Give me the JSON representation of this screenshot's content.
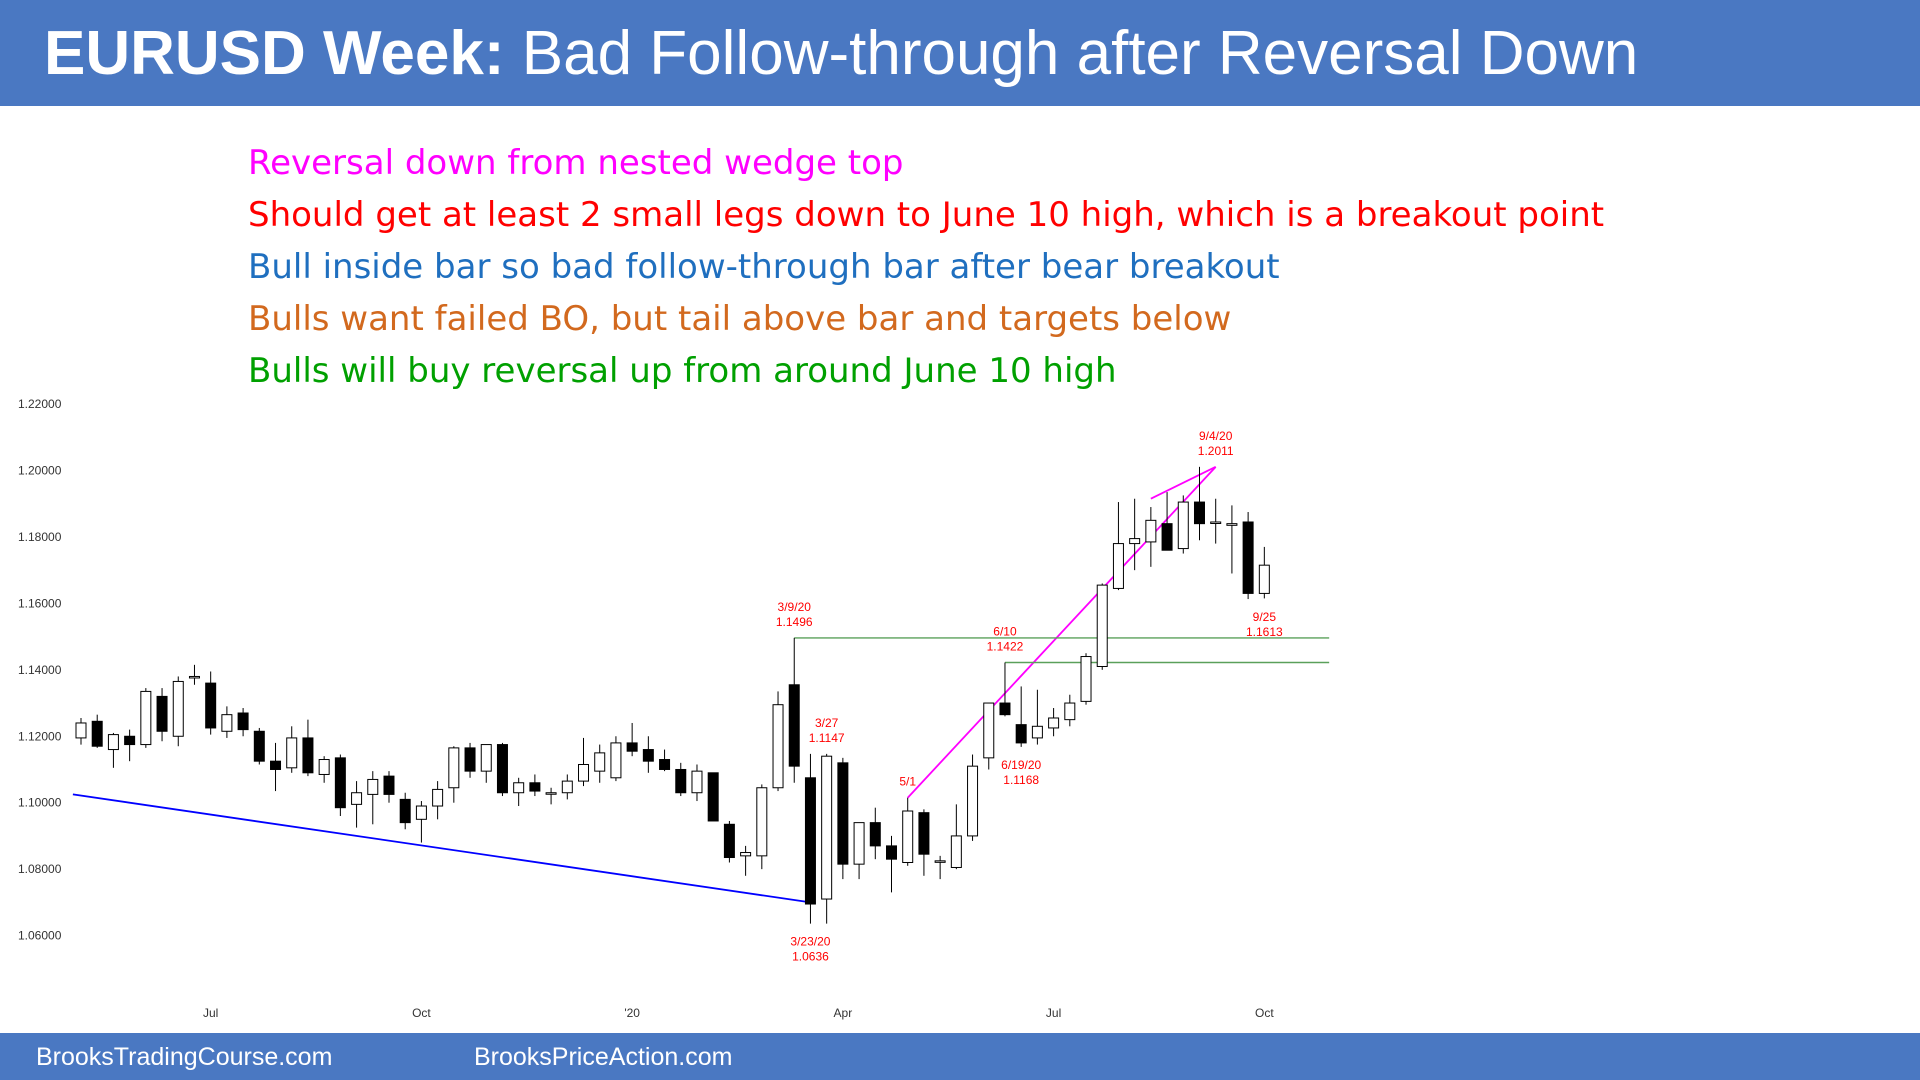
{
  "slide": {
    "title_bold": "EURUSD Week:",
    "title_rest": "Bad Follow-through after Reversal Down"
  },
  "notes": [
    {
      "text": "Reversal down from nested wedge top",
      "color": "#ff00ff"
    },
    {
      "text": "Should get at least 2 small legs down to June 10 high, which is a breakout point",
      "color": "#ff0000"
    },
    {
      "text": "Bull inside bar so bad follow-through bar after bear breakout",
      "color": "#1f6fbf"
    },
    {
      "text": "Bulls want failed BO, but tail above bar and targets below",
      "color": "#d2691e"
    },
    {
      "text": "Bulls will buy reversal up from around June 10 high",
      "color": "#00a000"
    }
  ],
  "footer": {
    "left": "BrooksTradingCourse.com",
    "right": "BrooksPriceAction.com"
  },
  "colors": {
    "banner": "#4a78c2",
    "annotation": "#ff0000",
    "trendline": "#0000ff",
    "wedge": "#ff00ff",
    "support": "#5aa05a"
  },
  "chart_data": {
    "type": "candlestick",
    "title": "",
    "xlabel": "",
    "ylabel": "",
    "ylim": [
      1.05,
      1.225
    ],
    "yticks": [
      "1.22000",
      "1.20000",
      "1.18000",
      "1.16000",
      "1.14000",
      "1.12000",
      "1.10000",
      "1.08000",
      "1.06000"
    ],
    "x_ticks": [
      {
        "label": "Jul",
        "index": 8
      },
      {
        "label": "Oct",
        "index": 21
      },
      {
        "label": "'20",
        "index": 34
      },
      {
        "label": "Apr",
        "index": 47
      },
      {
        "label": "Jul",
        "index": 60
      },
      {
        "label": "Oct",
        "index": 73
      }
    ],
    "candles": [
      {
        "o": 1.1195,
        "h": 1.1255,
        "l": 1.1175,
        "c": 1.124
      },
      {
        "o": 1.1245,
        "h": 1.1265,
        "l": 1.1165,
        "c": 1.117
      },
      {
        "o": 1.116,
        "h": 1.121,
        "l": 1.1105,
        "c": 1.1205
      },
      {
        "o": 1.12,
        "h": 1.122,
        "l": 1.1125,
        "c": 1.1175
      },
      {
        "o": 1.1175,
        "h": 1.1345,
        "l": 1.1165,
        "c": 1.1335
      },
      {
        "o": 1.132,
        "h": 1.1345,
        "l": 1.1185,
        "c": 1.1215
      },
      {
        "o": 1.12,
        "h": 1.138,
        "l": 1.117,
        "c": 1.1365
      },
      {
        "o": 1.138,
        "h": 1.1415,
        "l": 1.1355,
        "c": 1.138
      },
      {
        "o": 1.136,
        "h": 1.1395,
        "l": 1.1205,
        "c": 1.1225
      },
      {
        "o": 1.1215,
        "h": 1.129,
        "l": 1.1195,
        "c": 1.1265
      },
      {
        "o": 1.127,
        "h": 1.1285,
        "l": 1.12,
        "c": 1.122
      },
      {
        "o": 1.1215,
        "h": 1.1225,
        "l": 1.1115,
        "c": 1.1125
      },
      {
        "o": 1.1125,
        "h": 1.118,
        "l": 1.1035,
        "c": 1.11
      },
      {
        "o": 1.1105,
        "h": 1.123,
        "l": 1.109,
        "c": 1.1195
      },
      {
        "o": 1.1195,
        "h": 1.125,
        "l": 1.108,
        "c": 1.109
      },
      {
        "o": 1.1085,
        "h": 1.114,
        "l": 1.106,
        "c": 1.113
      },
      {
        "o": 1.1135,
        "h": 1.1145,
        "l": 1.096,
        "c": 1.0985
      },
      {
        "o": 1.0995,
        "h": 1.1065,
        "l": 1.0925,
        "c": 1.103
      },
      {
        "o": 1.1025,
        "h": 1.1095,
        "l": 1.0935,
        "c": 1.107
      },
      {
        "o": 1.108,
        "h": 1.1095,
        "l": 1.1,
        "c": 1.1025
      },
      {
        "o": 1.101,
        "h": 1.103,
        "l": 1.092,
        "c": 1.094
      },
      {
        "o": 1.095,
        "h": 1.1005,
        "l": 1.088,
        "c": 1.099
      },
      {
        "o": 1.099,
        "h": 1.1065,
        "l": 1.095,
        "c": 1.104
      },
      {
        "o": 1.1045,
        "h": 1.117,
        "l": 1.1,
        "c": 1.1165
      },
      {
        "o": 1.1165,
        "h": 1.118,
        "l": 1.1075,
        "c": 1.1095
      },
      {
        "o": 1.1095,
        "h": 1.1175,
        "l": 1.106,
        "c": 1.1175
      },
      {
        "o": 1.1175,
        "h": 1.118,
        "l": 1.102,
        "c": 1.103
      },
      {
        "o": 1.103,
        "h": 1.1075,
        "l": 1.099,
        "c": 1.106
      },
      {
        "o": 1.106,
        "h": 1.1085,
        "l": 1.102,
        "c": 1.1035
      },
      {
        "o": 1.103,
        "h": 1.1045,
        "l": 1.0995,
        "c": 1.103
      },
      {
        "o": 1.103,
        "h": 1.1085,
        "l": 1.101,
        "c": 1.1065
      },
      {
        "o": 1.1065,
        "h": 1.1195,
        "l": 1.105,
        "c": 1.1115
      },
      {
        "o": 1.1095,
        "h": 1.1175,
        "l": 1.106,
        "c": 1.115
      },
      {
        "o": 1.1075,
        "h": 1.12,
        "l": 1.1065,
        "c": 1.118
      },
      {
        "o": 1.118,
        "h": 1.124,
        "l": 1.114,
        "c": 1.1155
      },
      {
        "o": 1.116,
        "h": 1.12,
        "l": 1.109,
        "c": 1.1125
      },
      {
        "o": 1.113,
        "h": 1.116,
        "l": 1.1095,
        "c": 1.11
      },
      {
        "o": 1.11,
        "h": 1.112,
        "l": 1.102,
        "c": 1.103
      },
      {
        "o": 1.103,
        "h": 1.1115,
        "l": 1.1005,
        "c": 1.1095
      },
      {
        "o": 1.109,
        "h": 1.109,
        "l": 1.095,
        "c": 1.0945
      },
      {
        "o": 1.0935,
        "h": 1.0945,
        "l": 1.082,
        "c": 1.0835
      },
      {
        "o": 1.084,
        "h": 1.087,
        "l": 1.078,
        "c": 1.085
      },
      {
        "o": 1.084,
        "h": 1.1055,
        "l": 1.08,
        "c": 1.1045
      },
      {
        "o": 1.1045,
        "h": 1.1335,
        "l": 1.1035,
        "c": 1.1295
      },
      {
        "o": 1.1355,
        "h": 1.1496,
        "l": 1.106,
        "c": 1.111
      },
      {
        "o": 1.1075,
        "h": 1.1147,
        "l": 1.0636,
        "c": 1.0695
      },
      {
        "o": 1.071,
        "h": 1.1147,
        "l": 1.0636,
        "c": 1.114
      },
      {
        "o": 1.112,
        "h": 1.1135,
        "l": 1.077,
        "c": 1.0815
      },
      {
        "o": 1.0815,
        "h": 1.0925,
        "l": 1.077,
        "c": 1.094
      },
      {
        "o": 1.094,
        "h": 1.0985,
        "l": 1.083,
        "c": 1.087
      },
      {
        "o": 1.087,
        "h": 1.09,
        "l": 1.073,
        "c": 1.083
      },
      {
        "o": 1.082,
        "h": 1.1015,
        "l": 1.081,
        "c": 1.0975
      },
      {
        "o": 1.097,
        "h": 1.098,
        "l": 1.078,
        "c": 1.0845
      },
      {
        "o": 1.0825,
        "h": 1.084,
        "l": 1.077,
        "c": 1.0825
      },
      {
        "o": 1.0805,
        "h": 1.0995,
        "l": 1.08,
        "c": 1.09
      },
      {
        "o": 1.09,
        "h": 1.1145,
        "l": 1.0885,
        "c": 1.111
      },
      {
        "o": 1.1135,
        "h": 1.13,
        "l": 1.11,
        "c": 1.13
      },
      {
        "o": 1.13,
        "h": 1.1422,
        "l": 1.126,
        "c": 1.1265
      },
      {
        "o": 1.1235,
        "h": 1.135,
        "l": 1.1168,
        "c": 1.118
      },
      {
        "o": 1.1195,
        "h": 1.134,
        "l": 1.1175,
        "c": 1.123
      },
      {
        "o": 1.1225,
        "h": 1.1285,
        "l": 1.12,
        "c": 1.1255
      },
      {
        "o": 1.125,
        "h": 1.1325,
        "l": 1.123,
        "c": 1.13
      },
      {
        "o": 1.1305,
        "h": 1.145,
        "l": 1.1295,
        "c": 1.144
      },
      {
        "o": 1.141,
        "h": 1.166,
        "l": 1.14,
        "c": 1.1655
      },
      {
        "o": 1.1645,
        "h": 1.1905,
        "l": 1.164,
        "c": 1.178
      },
      {
        "o": 1.178,
        "h": 1.1915,
        "l": 1.17,
        "c": 1.1795
      },
      {
        "o": 1.1785,
        "h": 1.189,
        "l": 1.171,
        "c": 1.185
      },
      {
        "o": 1.184,
        "h": 1.1935,
        "l": 1.176,
        "c": 1.176
      },
      {
        "o": 1.1765,
        "h": 1.1925,
        "l": 1.175,
        "c": 1.1905
      },
      {
        "o": 1.1905,
        "h": 1.2011,
        "l": 1.179,
        "c": 1.184
      },
      {
        "o": 1.1845,
        "h": 1.1915,
        "l": 1.178,
        "c": 1.1845
      },
      {
        "o": 1.1835,
        "h": 1.1895,
        "l": 1.169,
        "c": 1.184
      },
      {
        "o": 1.1845,
        "h": 1.1875,
        "l": 1.1613,
        "c": 1.163
      },
      {
        "o": 1.163,
        "h": 1.177,
        "l": 1.1615,
        "c": 1.1715
      }
    ],
    "annotations": [
      {
        "lines": [
          "9/4/20",
          "1.2011"
        ],
        "index": 70,
        "y": 1.2011,
        "pos": "above"
      },
      {
        "lines": [
          "3/9/20",
          "1.1496"
        ],
        "index": 44,
        "y": 1.1496,
        "pos": "above"
      },
      {
        "lines": [
          "6/10",
          "1.1422"
        ],
        "index": 57,
        "y": 1.1422,
        "pos": "above"
      },
      {
        "lines": [
          "9/25",
          "1.1613"
        ],
        "index": 73,
        "y": 1.1613,
        "pos": "below"
      },
      {
        "lines": [
          "3/27",
          "1.1147"
        ],
        "index": 46,
        "y": 1.1147,
        "pos": "above"
      },
      {
        "lines": [
          "5/1"
        ],
        "index": 51,
        "y": 1.1015,
        "pos": "above"
      },
      {
        "lines": [
          "6/19/20",
          "1.1168"
        ],
        "index": 58,
        "y": 1.1168,
        "pos": "below"
      },
      {
        "lines": [
          "3/23/20",
          "1.0636"
        ],
        "index": 45,
        "y": 1.0636,
        "pos": "below"
      }
    ],
    "lines": [
      {
        "name": "bear-trendline",
        "color": "trendline",
        "from": {
          "index": -0.5,
          "y": 1.1025
        },
        "to": {
          "index": 45,
          "y": 1.07
        }
      },
      {
        "name": "wedge-trendline",
        "color": "wedge",
        "from": {
          "index": 51,
          "y": 1.1015
        },
        "to": {
          "index": 70,
          "y": 1.2011
        }
      },
      {
        "name": "wedge-top-line",
        "color": "wedge",
        "from": {
          "index": 66,
          "y": 1.1915
        },
        "to": {
          "index": 70,
          "y": 1.2011
        }
      },
      {
        "name": "march-high-line",
        "color": "support",
        "from": {
          "index": 44,
          "y": 1.1496
        },
        "to": {
          "index": 77,
          "y": 1.1496
        }
      },
      {
        "name": "june-high-line",
        "color": "support",
        "from": {
          "index": 57,
          "y": 1.1422
        },
        "to": {
          "index": 77,
          "y": 1.1422
        }
      }
    ]
  }
}
